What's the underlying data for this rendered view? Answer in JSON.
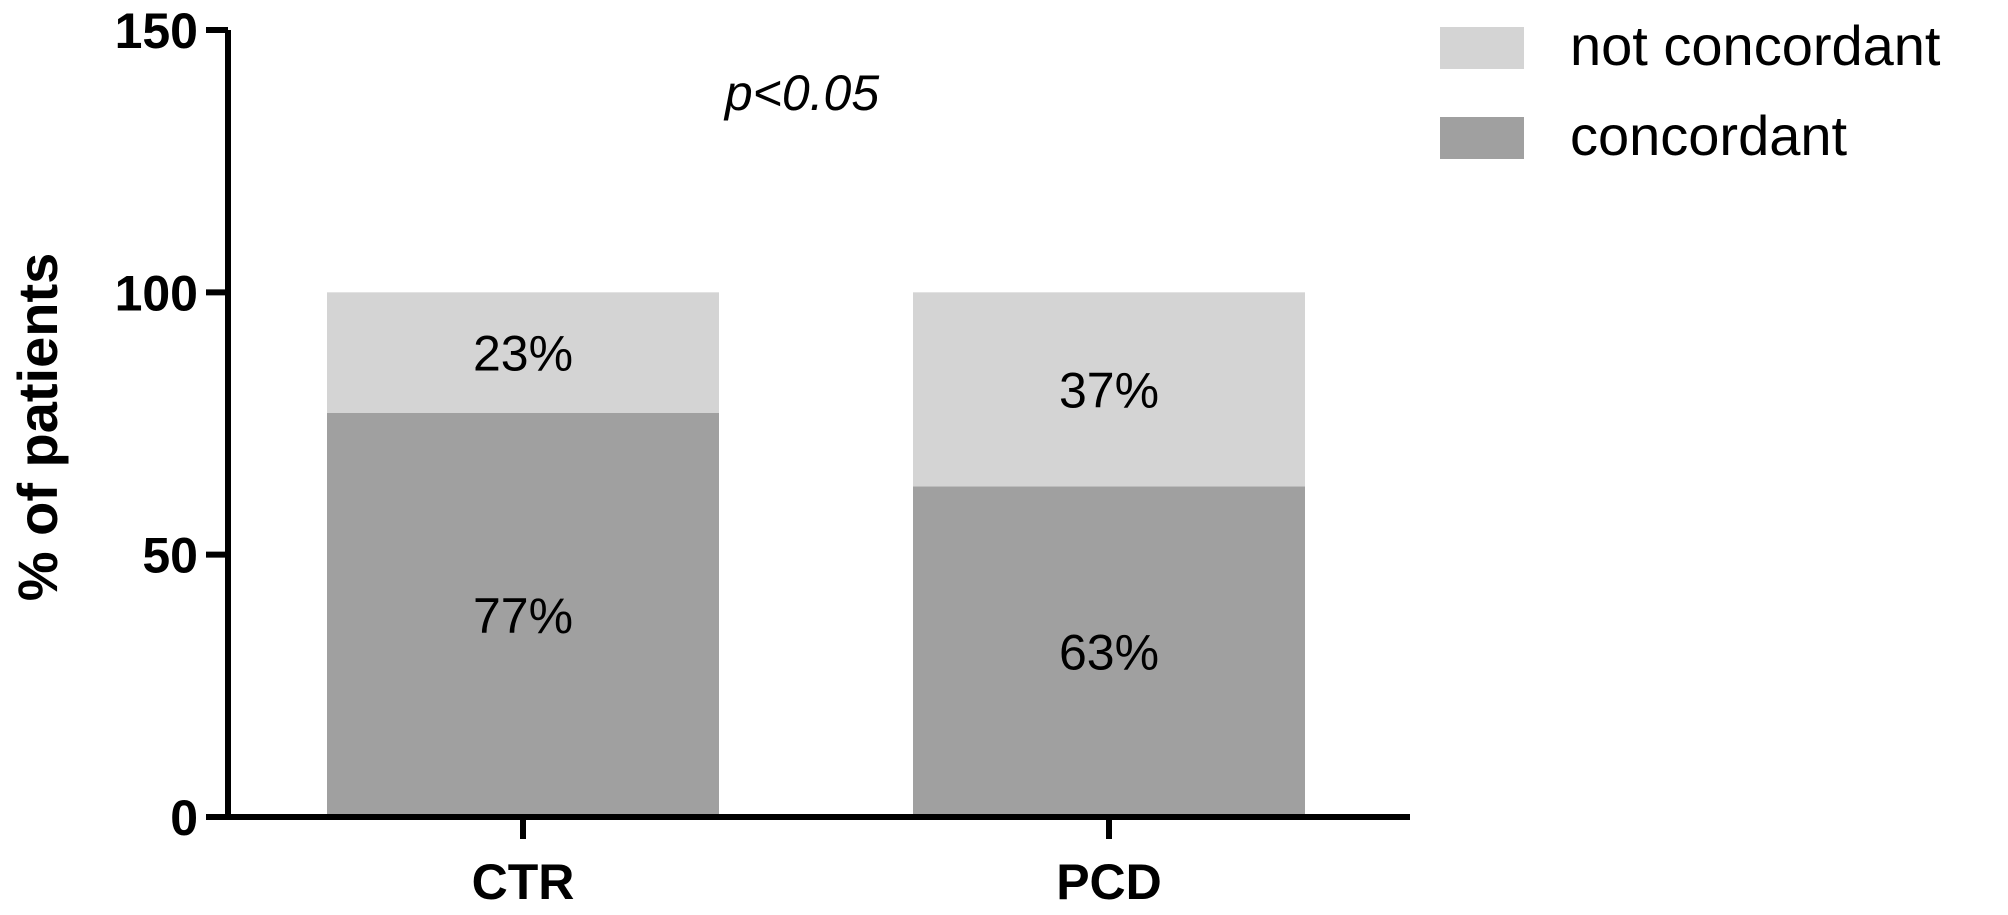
{
  "chart_data": {
    "type": "bar",
    "stacked": true,
    "categories": [
      "CTR",
      "PCD"
    ],
    "series": [
      {
        "name": "concordant",
        "values": [
          77,
          63
        ],
        "color": "#a0a0a0",
        "labels": [
          "77%",
          "63%"
        ]
      },
      {
        "name": "not concordant",
        "values": [
          23,
          37
        ],
        "color": "#d4d4d4",
        "labels": [
          "23%",
          "37%"
        ]
      }
    ],
    "title": "",
    "xlabel": "",
    "ylabel": "% of patients",
    "ylim": [
      0,
      150
    ],
    "yticks": [
      0,
      50,
      100,
      150
    ],
    "annotation": "p<0.05",
    "grid": false,
    "legend_position": "top-right"
  }
}
